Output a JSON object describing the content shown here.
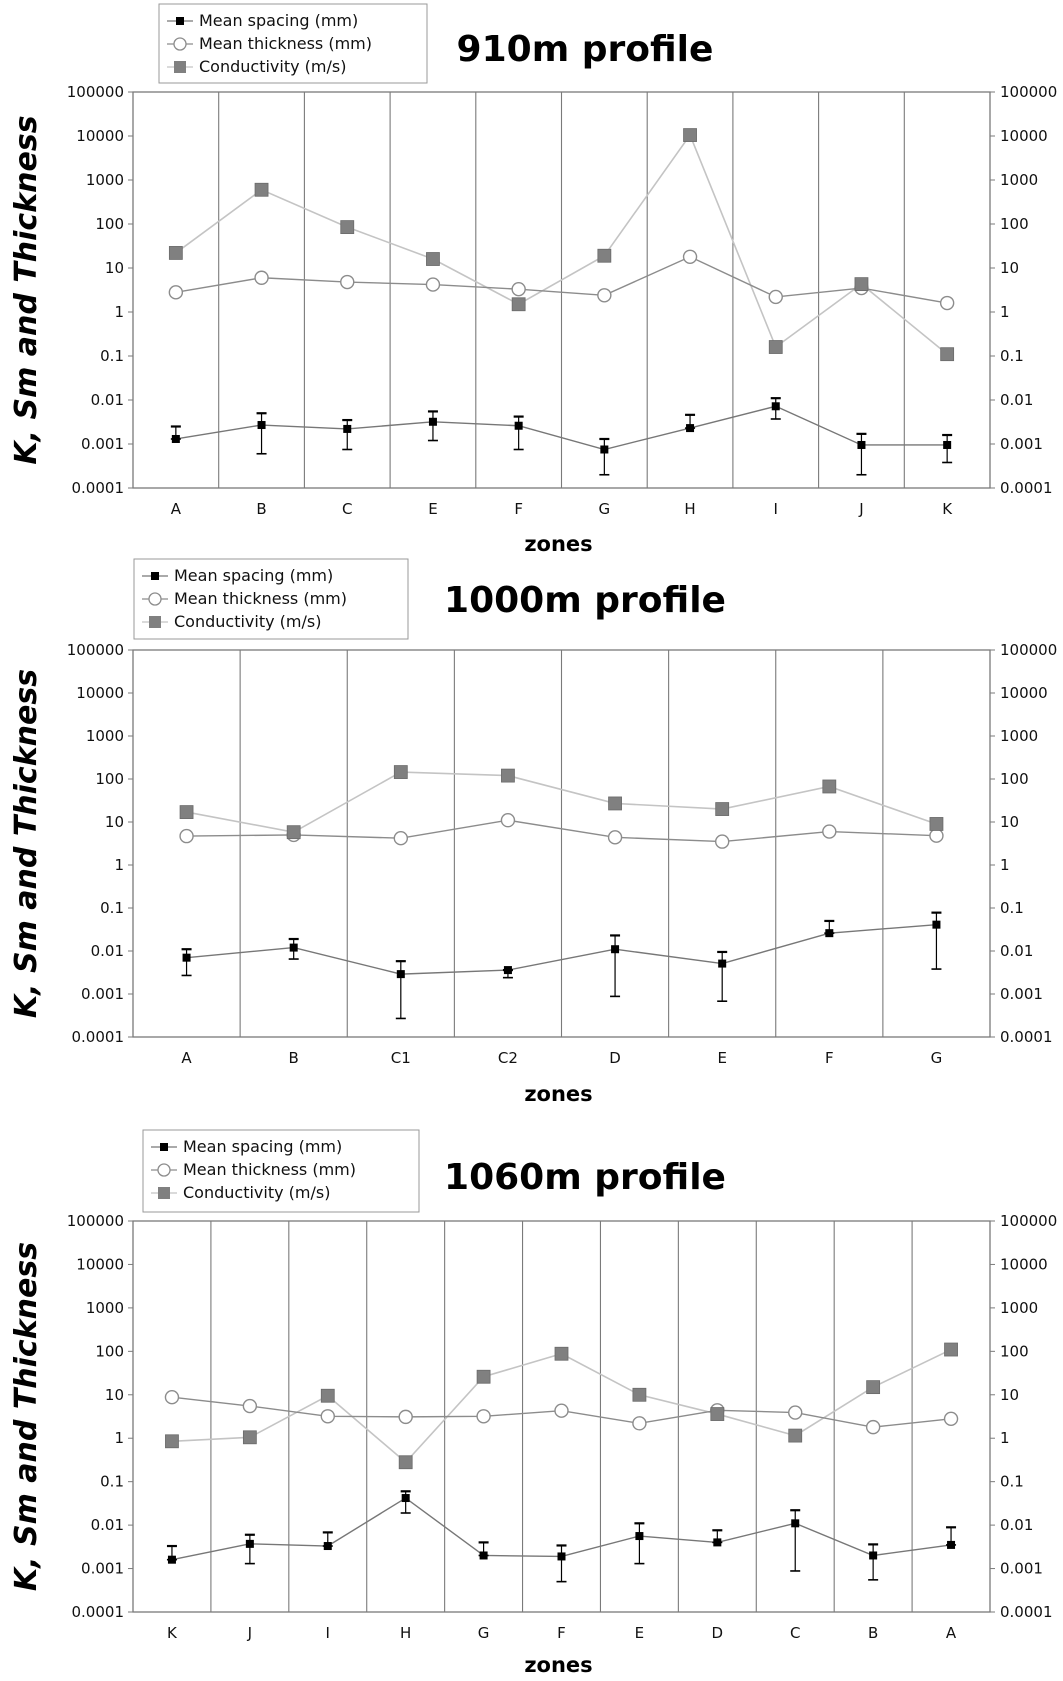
{
  "legend_labels": {
    "spacing": "Mean spacing (mm)",
    "thickness": "Mean thickness (mm)",
    "conductivity": "Conductivity (m/s)"
  },
  "colors": {
    "spacing": "#000000",
    "spacing_line": "#777777",
    "thickness_line": "#8c8c8c",
    "conductivity": "#808080",
    "conductivity_line": "#c4c4c4",
    "grid": "#7a7a7a"
  },
  "chart_data": [
    {
      "type": "line",
      "title": "910m profile",
      "xlabel": "zones",
      "ylabel": "K, Sm and Thickness",
      "yscale": "log",
      "ylim": [
        0.0001,
        100000
      ],
      "yticks": [
        "0.0001",
        "0.001",
        "0.01",
        "0.1",
        "1",
        "10",
        "100",
        "1000",
        "10000",
        "100000"
      ],
      "categories": [
        "A",
        "B",
        "C",
        "E",
        "F",
        "G",
        "H",
        "I",
        "J",
        "K"
      ],
      "series": [
        {
          "name": "Mean spacing (mm)",
          "values": [
            0.0013,
            0.0027,
            0.0022,
            0.0032,
            0.0026,
            0.00075,
            0.0023,
            0.0072,
            0.00095,
            0.00095
          ],
          "err_low": [
            0.0013,
            0.0006,
            0.00075,
            0.0012,
            0.00075,
            0.0002,
            0.0023,
            0.0037,
            0.0002,
            0.00038
          ],
          "err_high": [
            0.0025,
            0.005,
            0.0035,
            0.0055,
            0.0042,
            0.0013,
            0.0046,
            0.011,
            0.0017,
            0.0016
          ]
        },
        {
          "name": "Mean thickness (mm)",
          "values": [
            2.8,
            6,
            4.8,
            4.2,
            3.3,
            2.4,
            18,
            2.2,
            3.5,
            1.6
          ]
        },
        {
          "name": "Conductivity (m/s)",
          "values": [
            22,
            600,
            85,
            16,
            1.5,
            19,
            10500,
            0.16,
            4.3,
            0.11
          ]
        }
      ]
    },
    {
      "type": "line",
      "title": "1000m profile",
      "xlabel": "zones",
      "ylabel": "K, Sm and Thickness",
      "yscale": "log",
      "ylim": [
        0.0001,
        100000
      ],
      "yticks": [
        "0.0001",
        "0.001",
        "0.01",
        "0.1",
        "1",
        "10",
        "100",
        "1000",
        "10000",
        "100000"
      ],
      "categories": [
        "A",
        "B",
        "C1",
        "C2",
        "D",
        "E",
        "F",
        "G"
      ],
      "series": [
        {
          "name": "Mean spacing (mm)",
          "values": [
            0.007,
            0.012,
            0.0029,
            0.0036,
            0.011,
            0.0051,
            0.026,
            0.041
          ],
          "err_low": [
            0.0027,
            0.0065,
            0.00027,
            0.0024,
            0.00088,
            0.00068,
            0.026,
            0.0038
          ],
          "err_high": [
            0.011,
            0.019,
            0.0058,
            0.0036,
            0.023,
            0.0095,
            0.05,
            0.078
          ]
        },
        {
          "name": "Mean thickness (mm)",
          "values": [
            4.7,
            5,
            4.2,
            11,
            4.4,
            3.5,
            6,
            4.8
          ]
        },
        {
          "name": "Conductivity (m/s)",
          "values": [
            17,
            5.8,
            145,
            120,
            27,
            20,
            67,
            9
          ]
        }
      ]
    },
    {
      "type": "line",
      "title": "1060m profile",
      "xlabel": "zones",
      "ylabel": "K, Sm and Thickness",
      "yscale": "log",
      "ylim": [
        0.0001,
        100000
      ],
      "yticks": [
        "0.0001",
        "0.001",
        "0.01",
        "0.1",
        "1",
        "10",
        "100",
        "1000",
        "10000",
        "100000"
      ],
      "categories": [
        "K",
        "J",
        "I",
        "H",
        "G",
        "F",
        "E",
        "D",
        "C",
        "B",
        "A"
      ],
      "series": [
        {
          "name": "Mean spacing (mm)",
          "values": [
            0.0016,
            0.0037,
            0.0033,
            0.042,
            0.002,
            0.0019,
            0.0056,
            0.004,
            0.011,
            0.002,
            0.0035
          ],
          "err_low": [
            0.0016,
            0.0013,
            0.0033,
            0.019,
            0.002,
            0.0005,
            0.0013,
            0.004,
            0.00088,
            0.00055,
            0.0035
          ],
          "err_high": [
            0.0033,
            0.006,
            0.0068,
            0.06,
            0.004,
            0.0034,
            0.011,
            0.0076,
            0.022,
            0.0036,
            0.0089
          ]
        },
        {
          "name": "Mean thickness (mm)",
          "values": [
            8.8,
            5.5,
            3.2,
            3.1,
            3.2,
            4.3,
            2.2,
            4.4,
            3.9,
            1.8,
            2.8
          ]
        },
        {
          "name": "Conductivity (m/s)",
          "values": [
            0.85,
            1.05,
            9.5,
            0.28,
            26,
            88,
            10,
            3.6,
            1.15,
            15,
            110
          ]
        }
      ]
    }
  ]
}
